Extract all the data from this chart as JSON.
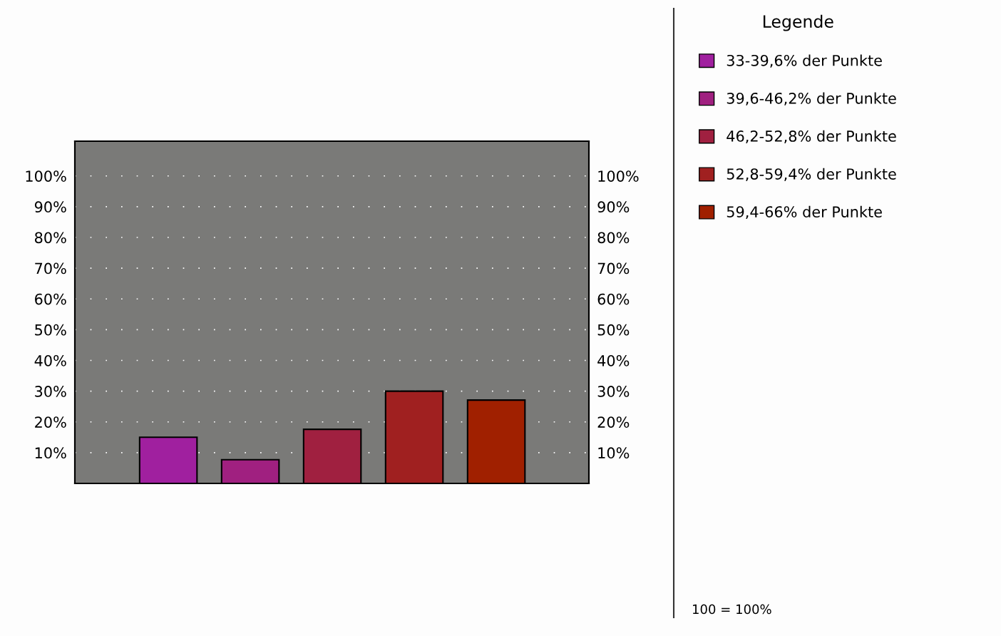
{
  "chart_data": {
    "type": "bar",
    "categories": [
      null,
      null,
      null,
      null,
      null
    ],
    "series": [
      {
        "name": "33-39,6% der Punkte",
        "color": "#a0209f",
        "values": [
          15,
          null,
          null,
          null,
          null
        ]
      },
      {
        "name": "39,6-46,2% der Punkte",
        "color": "#a02080",
        "values": [
          null,
          7.7,
          null,
          null,
          null
        ]
      },
      {
        "name": "46,2-52,8% der Punkte",
        "color": "#a02040",
        "values": [
          null,
          null,
          17.6,
          null,
          null
        ]
      },
      {
        "name": "52,8-59,4% der Punkte",
        "color": "#a02020",
        "values": [
          null,
          null,
          null,
          30,
          null
        ]
      },
      {
        "name": "59,4-66% der Punkte",
        "color": "#a02000",
        "values": [
          null,
          null,
          null,
          null,
          27.1
        ]
      }
    ],
    "legend_title": "Legende",
    "legend": "right",
    "annotations": [
      "100 = 100%"
    ],
    "ylim": [
      0,
      111.3
    ],
    "yticks": [
      {
        "value": 10,
        "label": "10%"
      },
      {
        "value": 20,
        "label": "20%"
      },
      {
        "value": 30,
        "label": "30%"
      },
      {
        "value": 40,
        "label": "40%"
      },
      {
        "value": 50,
        "label": "50%"
      },
      {
        "value": 60,
        "label": "60%"
      },
      {
        "value": 70,
        "label": "70%"
      },
      {
        "value": 80,
        "label": "80%"
      },
      {
        "value": 90,
        "label": "90%"
      },
      {
        "value": 100,
        "label": "100%"
      }
    ],
    "y2lim": [
      0,
      111.3
    ],
    "y2ticks": [
      {
        "value": 10,
        "label": "10%"
      },
      {
        "value": 20,
        "label": "20%"
      },
      {
        "value": 30,
        "label": "30%"
      },
      {
        "value": 40,
        "label": "40%"
      },
      {
        "value": 50,
        "label": "50%"
      },
      {
        "value": 60,
        "label": "60%"
      },
      {
        "value": 70,
        "label": "70%"
      },
      {
        "value": 80,
        "label": "80%"
      },
      {
        "value": 90,
        "label": "90%"
      },
      {
        "value": 100,
        "label": "100%"
      }
    ],
    "grid": "y",
    "tick_labels": "y"
  }
}
